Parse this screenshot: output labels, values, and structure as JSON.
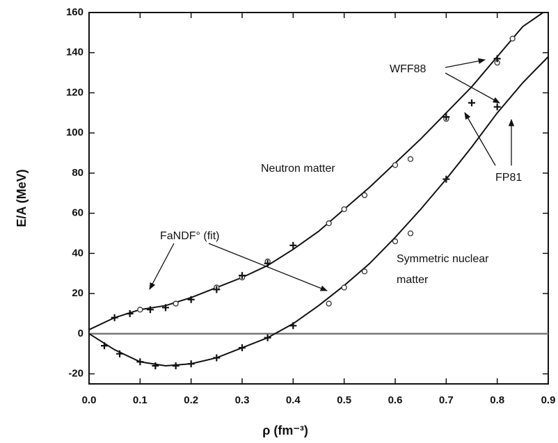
{
  "chart_data": {
    "type": "line",
    "xlabel": "ρ  (fm⁻³)",
    "ylabel": "E/A  (MeV)",
    "xlim": [
      0,
      0.9
    ],
    "ylim": [
      -25,
      160
    ],
    "xticks": [
      {
        "value": 0,
        "label": "0.0"
      },
      0.1,
      0.2,
      0.3,
      0.4,
      0.5,
      0.6,
      0.7,
      0.8,
      {
        "value": 0.9,
        "label": "0.9"
      }
    ],
    "yticks": [
      -20,
      0,
      20,
      40,
      60,
      80,
      100,
      120,
      140,
      160
    ],
    "fit_label": "FaNDF° (fit)",
    "series": [
      {
        "name": "Neutron matter",
        "color": "#111111",
        "style": "curve",
        "x": [
          0,
          0.05,
          0.1,
          0.15,
          0.2,
          0.25,
          0.3,
          0.35,
          0.4,
          0.45,
          0.5,
          0.55,
          0.6,
          0.65,
          0.7,
          0.75,
          0.8,
          0.85,
          0.89
        ],
        "values": [
          2,
          8,
          12,
          14,
          18,
          23,
          28,
          34,
          42,
          51,
          62,
          73,
          85,
          97,
          110,
          123,
          138,
          153,
          160
        ]
      },
      {
        "name": "Symmetric nuclear matter",
        "color": "#111111",
        "style": "curve",
        "x": [
          0,
          0.05,
          0.1,
          0.15,
          0.2,
          0.25,
          0.3,
          0.35,
          0.4,
          0.45,
          0.5,
          0.55,
          0.6,
          0.65,
          0.7,
          0.75,
          0.8,
          0.85,
          0.9
        ],
        "values": [
          0,
          -8,
          -14,
          -16,
          -15,
          -12,
          -7,
          -2,
          5,
          14,
          24,
          35,
          48,
          62,
          77,
          93,
          110,
          125,
          138
        ]
      },
      {
        "name": "WFF88",
        "color": "#333333",
        "style": "circle",
        "x": [
          0.1,
          0.17,
          0.25,
          0.3,
          0.35,
          0.47,
          0.5,
          0.54,
          0.6,
          0.63,
          0.7,
          0.8,
          0.83,
          0.47,
          0.5,
          0.54,
          0.6,
          0.63
        ],
        "values": [
          12,
          15,
          23,
          28,
          36,
          55,
          62,
          69,
          84,
          87,
          107,
          135,
          147,
          15,
          23,
          31,
          46,
          50
        ]
      },
      {
        "name": "FP81",
        "color": "#111111",
        "style": "plus",
        "x": [
          0.05,
          0.08,
          0.12,
          0.15,
          0.2,
          0.25,
          0.3,
          0.35,
          0.4,
          0.7,
          0.75,
          0.8,
          0.03,
          0.06,
          0.1,
          0.13,
          0.17,
          0.2,
          0.25,
          0.3,
          0.35,
          0.4,
          0.7,
          0.8
        ],
        "values": [
          8,
          10,
          12,
          13,
          17,
          22,
          29,
          35,
          44,
          108,
          115,
          137,
          -6,
          -10,
          -14,
          -16,
          -16,
          -15,
          -12,
          -7,
          -2,
          4,
          77,
          113
        ]
      }
    ]
  }
}
